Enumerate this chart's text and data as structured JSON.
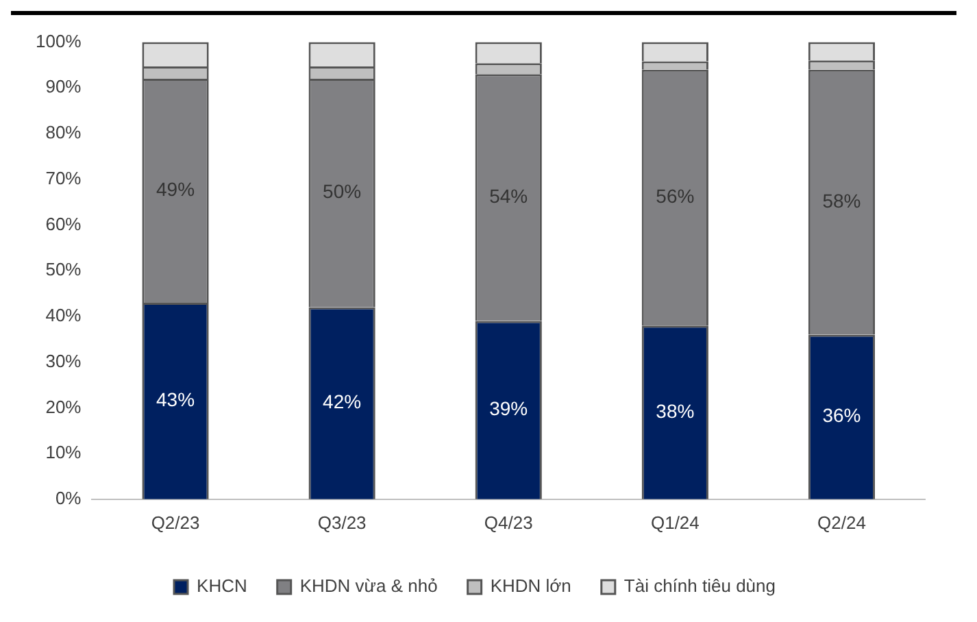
{
  "chart_data": {
    "type": "bar",
    "stacked": true,
    "categories": [
      "Q2/23",
      "Q3/23",
      "Q4/23",
      "Q1/24",
      "Q2/24"
    ],
    "series": [
      {
        "name": "KHCN",
        "color": "#002060",
        "values": [
          43,
          42,
          39,
          38,
          36
        ],
        "value_labels": [
          "43%",
          "42%",
          "39%",
          "38%",
          "36%"
        ]
      },
      {
        "name": "KHDN vừa & nhỏ",
        "color": "#808083",
        "values": [
          49,
          50,
          54,
          56,
          58
        ],
        "value_labels": [
          "49%",
          "50%",
          "54%",
          "56%",
          "58%"
        ]
      },
      {
        "name": "KHDN lớn",
        "color": "#bfbfbf",
        "values": [
          2.7,
          2.7,
          2.4,
          1.8,
          2.0
        ]
      },
      {
        "name": "Tài chính tiêu dùng",
        "color": "#dedede",
        "values": [
          5.3,
          5.3,
          4.6,
          4.2,
          4.0
        ]
      }
    ],
    "ylim": [
      0,
      100
    ],
    "yticks": [
      {
        "value": 0,
        "label": "0%"
      },
      {
        "value": 10,
        "label": "10%"
      },
      {
        "value": 20,
        "label": "20%"
      },
      {
        "value": 30,
        "label": "30%"
      },
      {
        "value": 40,
        "label": "40%"
      },
      {
        "value": 50,
        "label": "50%"
      },
      {
        "value": 60,
        "label": "60%"
      },
      {
        "value": 70,
        "label": "70%"
      },
      {
        "value": 80,
        "label": "80%"
      },
      {
        "value": 90,
        "label": "90%"
      },
      {
        "value": 100,
        "label": "100%"
      }
    ],
    "grid": false,
    "legend": "bottom"
  }
}
